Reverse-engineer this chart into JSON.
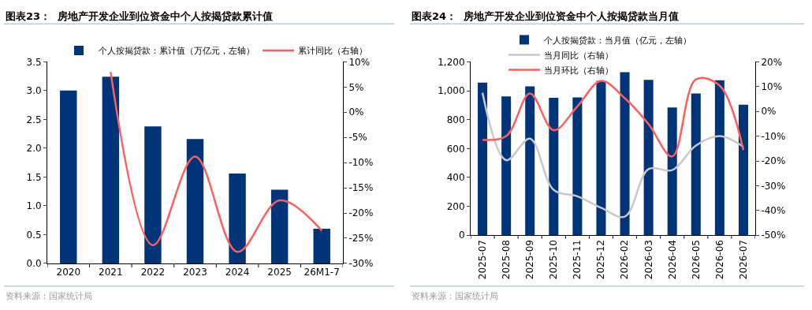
{
  "chart_data": [
    {
      "type": "bar",
      "title": "图表23：  房地产开发企业到位资金中个人按揭贷款累计值",
      "categories": [
        "2020",
        "2021",
        "2022",
        "2023",
        "2024",
        "2025",
        "26M1-7"
      ],
      "series": [
        {
          "name": "个人按揭贷款：累计值（万亿元，左轴）",
          "color": "#003478",
          "values": [
            3.0,
            3.24,
            2.38,
            2.16,
            1.56,
            1.28,
            0.6
          ]
        },
        {
          "name": "累计同比（右轴）",
          "type": "line",
          "axis": "y2",
          "color": "#ff5f5f",
          "values": [
            null,
            8,
            -26.4,
            -8.8,
            -27.7,
            -17.5,
            -23.5
          ]
        }
      ],
      "ylim": [
        0,
        3.5
      ],
      "yticks": [
        {
          "value": 0,
          "label": "0.0"
        },
        {
          "value": 0.5,
          "label": "0.5"
        },
        {
          "value": 1,
          "label": "1.0"
        },
        {
          "value": 1.5,
          "label": "1.5"
        },
        {
          "value": 2,
          "label": "2.0"
        },
        {
          "value": 2.5,
          "label": "2.5"
        },
        {
          "value": 3,
          "label": "3.0"
        },
        {
          "value": 3.5,
          "label": "3.5"
        }
      ],
      "y2lim": [
        -30,
        10
      ],
      "y2ticks": [
        {
          "value": -30,
          "label": "-30%"
        },
        {
          "value": -25,
          "label": "-25%"
        },
        {
          "value": -20,
          "label": "-20%"
        },
        {
          "value": -15,
          "label": "-15%"
        },
        {
          "value": -10,
          "label": "-10%"
        },
        {
          "value": -5,
          "label": "-5%"
        },
        {
          "value": 0,
          "label": "0%"
        },
        {
          "value": 5,
          "label": "5%"
        },
        {
          "value": 10,
          "label": "10%"
        }
      ],
      "legend": "top",
      "annotations": [
        "资料来源：国家统计局"
      ]
    },
    {
      "type": "bar",
      "title": "图表24：  房地产开发企业到位资金中个人按揭贷款当月值",
      "categories": [
        "2025-07",
        "2025-08",
        "2025-09",
        "2025-10",
        "2025-11",
        "2025-12",
        "2026-02",
        "2026-03",
        "2026-04",
        "2026-05",
        "2026-06",
        "2026-07"
      ],
      "series": [
        {
          "name": "个人按揭贷款：当月值（亿元，左轴）",
          "color": "#003478",
          "values": [
            1056,
            961,
            1030,
            951,
            953,
            1068,
            1128,
            1075,
            884,
            981,
            1072,
            903
          ]
        },
        {
          "name": "当月同比（右轴）",
          "type": "line",
          "axis": "y2",
          "color": "#c8c8c8",
          "values": [
            7.5,
            -19.7,
            -11,
            -31.7,
            -34.3,
            -38.9,
            -42.5,
            -23.3,
            -23.7,
            -13.8,
            -10,
            -14.3
          ]
        },
        {
          "name": "当月环比（右轴）",
          "type": "line",
          "axis": "y2",
          "color": "#ff5f5f",
          "values": [
            -11.5,
            -10,
            7.2,
            -7.6,
            2,
            12.3,
            5.3,
            -5.1,
            -18.2,
            12.9,
            10.4,
            -15.6
          ]
        }
      ],
      "ylim": [
        0,
        1200
      ],
      "yticks": [
        0,
        200,
        400,
        600,
        800,
        {
          "value": 1000,
          "label": "1,000"
        },
        {
          "value": 1200,
          "label": "1,200"
        }
      ],
      "y2lim": [
        -50,
        20
      ],
      "y2ticks": [
        {
          "value": -50,
          "label": "-50%"
        },
        {
          "value": -40,
          "label": "-40%"
        },
        {
          "value": -30,
          "label": "-30%"
        },
        {
          "value": -20,
          "label": "-20%"
        },
        {
          "value": -10,
          "label": "-10%"
        },
        {
          "value": 0,
          "label": "0%"
        },
        {
          "value": 10,
          "label": "10%"
        },
        {
          "value": 20,
          "label": "20%"
        }
      ],
      "legend": "top",
      "annotations": [
        "资料来源：国家统计局"
      ]
    }
  ]
}
